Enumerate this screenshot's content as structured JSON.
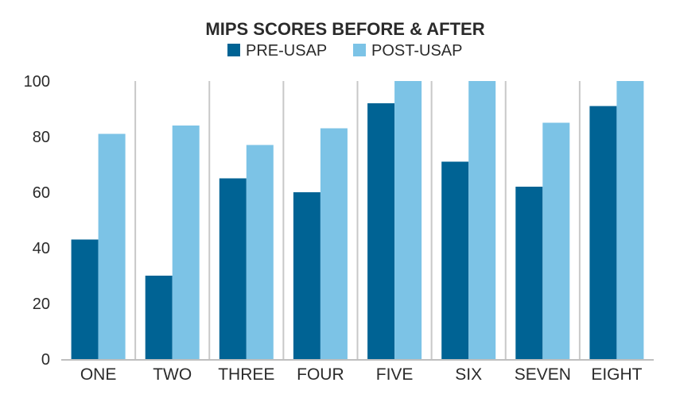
{
  "chart_data": {
    "type": "bar",
    "title": "MIPS SCORES BEFORE & AFTER",
    "categories": [
      "ONE",
      "TWO",
      "THREE",
      "FOUR",
      "FIVE",
      "SIX",
      "SEVEN",
      "EIGHT"
    ],
    "series": [
      {
        "name": "PRE-USAP",
        "color": "#006394",
        "values": [
          43,
          30,
          65,
          60,
          92,
          71,
          62,
          91
        ]
      },
      {
        "name": "POST-USAP",
        "color": "#7cc3e6",
        "values": [
          81,
          84,
          77,
          83,
          100,
          100,
          85,
          100
        ]
      }
    ],
    "xlabel": "",
    "ylabel": "",
    "ylim": [
      0,
      100
    ],
    "yticks": [
      "0",
      "20",
      "40",
      "60",
      "80",
      "100"
    ],
    "grid": false,
    "category_separators": true,
    "legend_position": "top-center"
  }
}
